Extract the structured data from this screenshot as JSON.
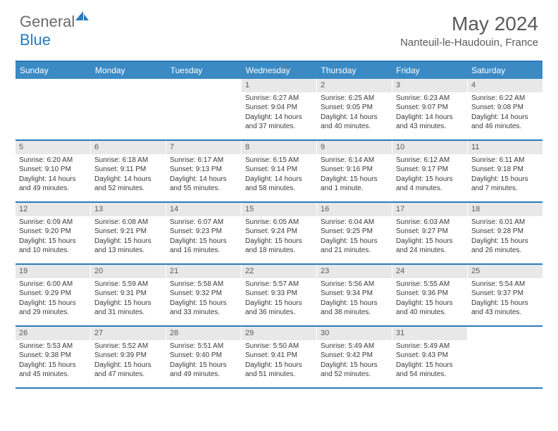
{
  "logo": {
    "general": "General",
    "blue": "Blue"
  },
  "title": "May 2024",
  "location": "Nanteuil-le-Haudouin, France",
  "colors": {
    "header_bg": "#3b8ac4",
    "border": "#2a7ab9",
    "daynum_bg": "#e8e8e8",
    "text": "#3a3a3a",
    "title_text": "#5a5a5a"
  },
  "day_names": [
    "Sunday",
    "Monday",
    "Tuesday",
    "Wednesday",
    "Thursday",
    "Friday",
    "Saturday"
  ],
  "weeks": [
    [
      null,
      null,
      null,
      {
        "n": "1",
        "sr": "6:27 AM",
        "ss": "9:04 PM",
        "dl": "14 hours and 37 minutes."
      },
      {
        "n": "2",
        "sr": "6:25 AM",
        "ss": "9:05 PM",
        "dl": "14 hours and 40 minutes."
      },
      {
        "n": "3",
        "sr": "6:23 AM",
        "ss": "9:07 PM",
        "dl": "14 hours and 43 minutes."
      },
      {
        "n": "4",
        "sr": "6:22 AM",
        "ss": "9:08 PM",
        "dl": "14 hours and 46 minutes."
      }
    ],
    [
      {
        "n": "5",
        "sr": "6:20 AM",
        "ss": "9:10 PM",
        "dl": "14 hours and 49 minutes."
      },
      {
        "n": "6",
        "sr": "6:18 AM",
        "ss": "9:11 PM",
        "dl": "14 hours and 52 minutes."
      },
      {
        "n": "7",
        "sr": "6:17 AM",
        "ss": "9:13 PM",
        "dl": "14 hours and 55 minutes."
      },
      {
        "n": "8",
        "sr": "6:15 AM",
        "ss": "9:14 PM",
        "dl": "14 hours and 58 minutes."
      },
      {
        "n": "9",
        "sr": "6:14 AM",
        "ss": "9:16 PM",
        "dl": "15 hours and 1 minute."
      },
      {
        "n": "10",
        "sr": "6:12 AM",
        "ss": "9:17 PM",
        "dl": "15 hours and 4 minutes."
      },
      {
        "n": "11",
        "sr": "6:11 AM",
        "ss": "9:18 PM",
        "dl": "15 hours and 7 minutes."
      }
    ],
    [
      {
        "n": "12",
        "sr": "6:09 AM",
        "ss": "9:20 PM",
        "dl": "15 hours and 10 minutes."
      },
      {
        "n": "13",
        "sr": "6:08 AM",
        "ss": "9:21 PM",
        "dl": "15 hours and 13 minutes."
      },
      {
        "n": "14",
        "sr": "6:07 AM",
        "ss": "9:23 PM",
        "dl": "15 hours and 16 minutes."
      },
      {
        "n": "15",
        "sr": "6:05 AM",
        "ss": "9:24 PM",
        "dl": "15 hours and 18 minutes."
      },
      {
        "n": "16",
        "sr": "6:04 AM",
        "ss": "9:25 PM",
        "dl": "15 hours and 21 minutes."
      },
      {
        "n": "17",
        "sr": "6:03 AM",
        "ss": "9:27 PM",
        "dl": "15 hours and 24 minutes."
      },
      {
        "n": "18",
        "sr": "6:01 AM",
        "ss": "9:28 PM",
        "dl": "15 hours and 26 minutes."
      }
    ],
    [
      {
        "n": "19",
        "sr": "6:00 AM",
        "ss": "9:29 PM",
        "dl": "15 hours and 29 minutes."
      },
      {
        "n": "20",
        "sr": "5:59 AM",
        "ss": "9:31 PM",
        "dl": "15 hours and 31 minutes."
      },
      {
        "n": "21",
        "sr": "5:58 AM",
        "ss": "9:32 PM",
        "dl": "15 hours and 33 minutes."
      },
      {
        "n": "22",
        "sr": "5:57 AM",
        "ss": "9:33 PM",
        "dl": "15 hours and 36 minutes."
      },
      {
        "n": "23",
        "sr": "5:56 AM",
        "ss": "9:34 PM",
        "dl": "15 hours and 38 minutes."
      },
      {
        "n": "24",
        "sr": "5:55 AM",
        "ss": "9:36 PM",
        "dl": "15 hours and 40 minutes."
      },
      {
        "n": "25",
        "sr": "5:54 AM",
        "ss": "9:37 PM",
        "dl": "15 hours and 43 minutes."
      }
    ],
    [
      {
        "n": "26",
        "sr": "5:53 AM",
        "ss": "9:38 PM",
        "dl": "15 hours and 45 minutes."
      },
      {
        "n": "27",
        "sr": "5:52 AM",
        "ss": "9:39 PM",
        "dl": "15 hours and 47 minutes."
      },
      {
        "n": "28",
        "sr": "5:51 AM",
        "ss": "9:40 PM",
        "dl": "15 hours and 49 minutes."
      },
      {
        "n": "29",
        "sr": "5:50 AM",
        "ss": "9:41 PM",
        "dl": "15 hours and 51 minutes."
      },
      {
        "n": "30",
        "sr": "5:49 AM",
        "ss": "9:42 PM",
        "dl": "15 hours and 52 minutes."
      },
      {
        "n": "31",
        "sr": "5:49 AM",
        "ss": "9:43 PM",
        "dl": "15 hours and 54 minutes."
      },
      null
    ]
  ],
  "labels": {
    "sunrise": "Sunrise:",
    "sunset": "Sunset:",
    "daylight": "Daylight:"
  }
}
